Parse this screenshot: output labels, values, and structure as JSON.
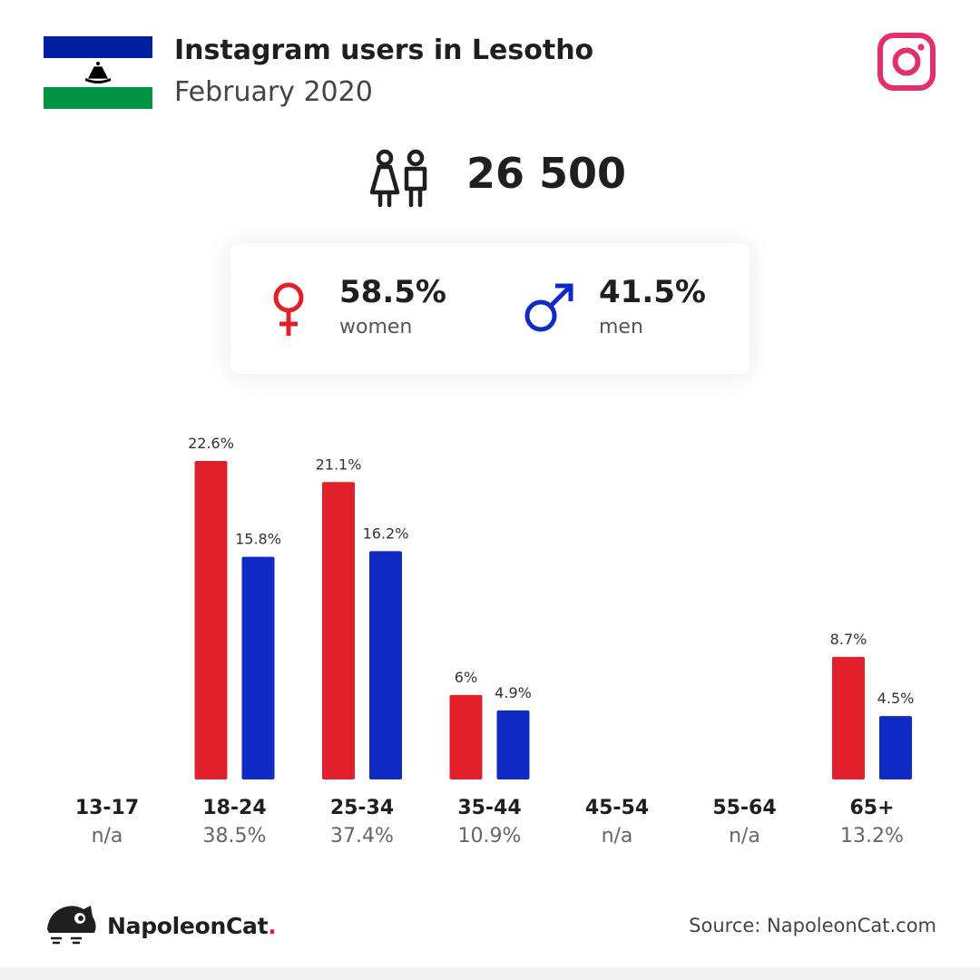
{
  "header": {
    "title": "Instagram users in Lesotho",
    "subtitle": "February 2020"
  },
  "summary": {
    "total_users": "26 500"
  },
  "gender": {
    "women_pct": "58.5%",
    "women_label": "women",
    "men_pct": "41.5%",
    "men_label": "men"
  },
  "colors": {
    "women": "#e0202a",
    "men": "#0f2bc4",
    "instagram": "#e1306c",
    "flag_blue": "#00209f",
    "flag_green": "#009543"
  },
  "chart_data": {
    "type": "bar",
    "categories": [
      "13-17",
      "18-24",
      "25-34",
      "35-44",
      "45-54",
      "55-64",
      "65+"
    ],
    "category_totals": [
      "n/a",
      "38.5%",
      "37.4%",
      "10.9%",
      "n/a",
      "n/a",
      "13.2%"
    ],
    "series": [
      {
        "values": [
          null,
          22.6,
          21.1,
          6,
          null,
          null,
          8.7
        ],
        "labels": [
          "",
          "22.6%",
          "21.1%",
          "6%",
          "",
          "",
          "8.7%"
        ],
        "color": "#e0202a"
      },
      {
        "values": [
          null,
          15.8,
          16.2,
          4.9,
          null,
          null,
          4.5
        ],
        "labels": [
          "",
          "15.8%",
          "16.2%",
          "4.9%",
          "",
          "",
          "4.5%"
        ],
        "color": "#0f2bc4"
      }
    ],
    "ylim": [
      0,
      22.6
    ],
    "grid": false
  },
  "footer": {
    "brand": "NapoleonCat",
    "brand_dot": ".",
    "source": "Source: NapoleonCat.com"
  },
  "icons": {
    "flag": "lesotho-flag",
    "social": "instagram-icon",
    "users": "users-icon",
    "female": "female-icon",
    "male": "male-icon",
    "brand": "napoleoncat-logo"
  }
}
